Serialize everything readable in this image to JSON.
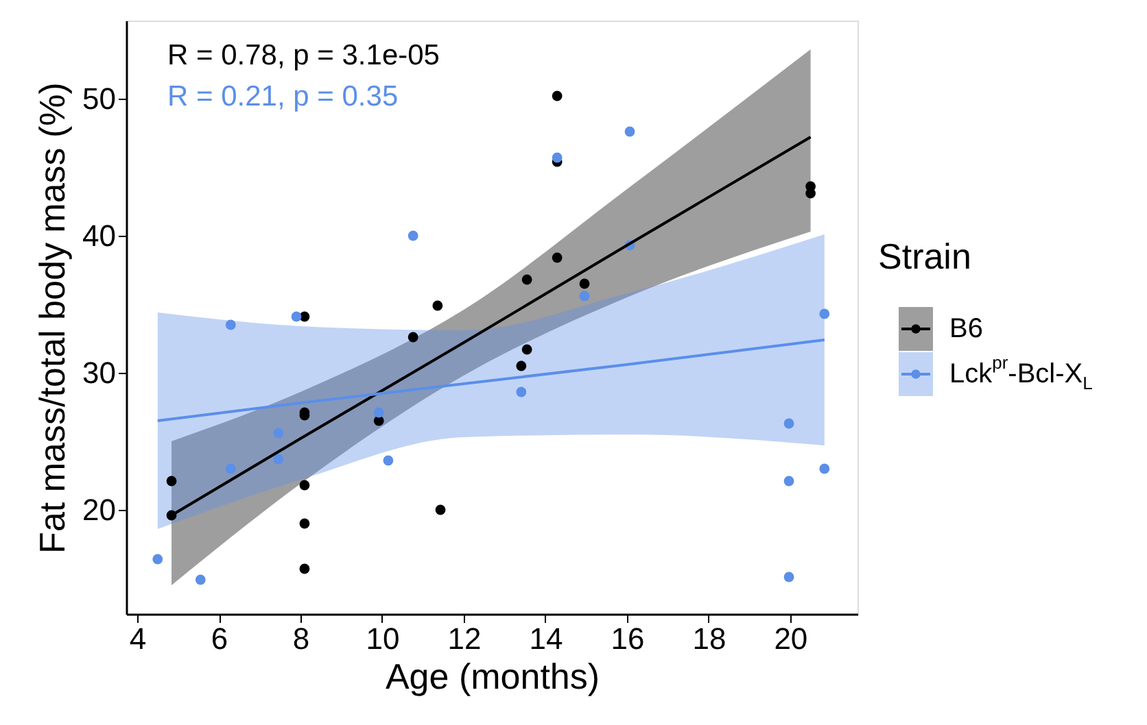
{
  "chart_data": {
    "type": "scatter",
    "xlabel": "Age (months)",
    "ylabel": "Fat mass/total body mass (%)",
    "legend_title": "Strain",
    "legend": "right",
    "grid": false,
    "marker": "circle",
    "xlim": [
      3.73,
      21.65
    ],
    "xticks": [
      4,
      6,
      8,
      10,
      12,
      14,
      16,
      18,
      20
    ],
    "ylim": [
      12.4,
      55.7
    ],
    "yticks": [
      20,
      30,
      40,
      50
    ],
    "annotations": [
      "R = 0.78, p = 3.1e-05",
      "R = 0.21, p = 0.35"
    ],
    "series": [
      {
        "name": "B6",
        "color": "#000000",
        "x": [
          4.84,
          4.84,
          8.1,
          8.1,
          8.1,
          8.1,
          8.1,
          8.1,
          9.92,
          11.43,
          11.36,
          10.76,
          13.55,
          14.29,
          14.96,
          14.29,
          14.29,
          20.5,
          20.5,
          13.55,
          13.41
        ],
        "values": [
          22.1,
          19.6,
          27.1,
          26.9,
          21.8,
          19.0,
          15.7,
          34.1,
          26.5,
          20.0,
          34.9,
          32.6,
          36.8,
          38.4,
          36.5,
          45.4,
          50.2,
          43.6,
          43.1,
          31.7,
          30.5
        ]
      },
      {
        "name": "Lck$^{pr}$-Bcl-X$_{L}$",
        "color": "#5b8fe8",
        "x": [
          4.5,
          5.55,
          6.29,
          6.29,
          7.46,
          7.46,
          7.9,
          9.92,
          10.15,
          10.76,
          14.29,
          16.07,
          16.07,
          14.96,
          20.84,
          13.41,
          19.97,
          19.97,
          19.97,
          20.84
        ],
        "values": [
          16.4,
          14.9,
          23.0,
          33.5,
          25.6,
          23.7,
          34.1,
          27.1,
          23.6,
          40.0,
          45.7,
          47.6,
          39.3,
          35.6,
          34.3,
          28.6,
          26.3,
          22.1,
          15.1,
          23.0
        ]
      },
      {
        "color": "#000000",
        "type": "line",
        "marker": "none",
        "x": [
          4.84,
          8,
          12,
          16,
          20.5
        ],
        "values": [
          19.6,
          25.2,
          32.2,
          39.3,
          47.2
        ],
        "lower": [
          14.5,
          21.9,
          29.8,
          35.5,
          40.3
        ],
        "upper": [
          25.0,
          28.6,
          34.6,
          43.4,
          53.6
        ]
      },
      {
        "color": "#5b8fe8",
        "type": "line",
        "marker": "none",
        "x": [
          4.5,
          8,
          12,
          16,
          20.84
        ],
        "values": [
          26.5,
          27.8,
          29.2,
          30.6,
          32.4
        ],
        "lower": [
          18.6,
          22.2,
          25.3,
          25.5,
          24.7
        ],
        "upper": [
          34.4,
          33.4,
          33.1,
          35.8,
          40.1
        ]
      }
    ]
  }
}
